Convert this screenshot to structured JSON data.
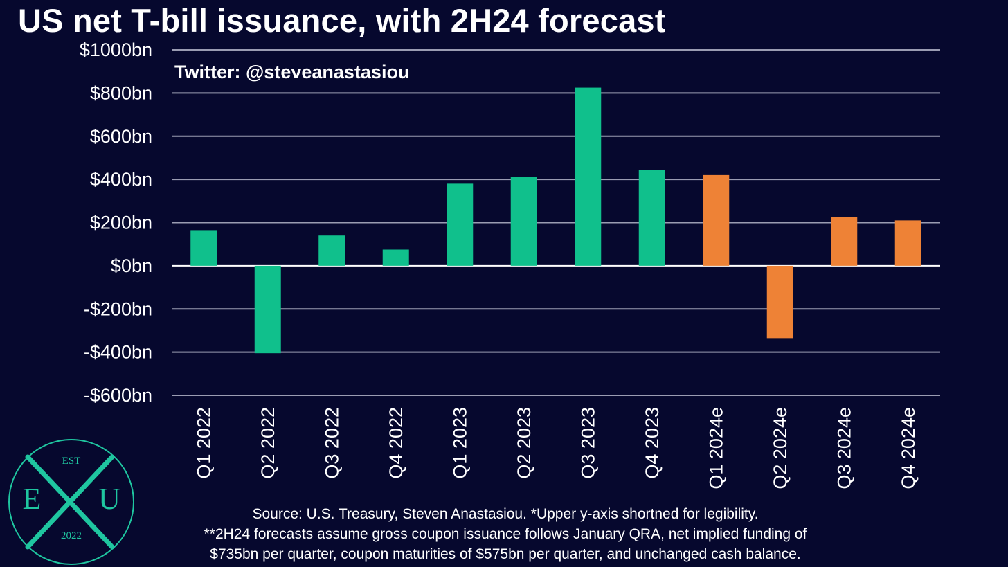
{
  "title": "US net T-bill issuance, with 2H24 forecast",
  "watermark": "Twitter: @steveanastasiou",
  "footnotes": [
    "Source: U.S. Treasury, Steven Anastasiou. *Upper y-axis shortned for legibility.",
    "**2H24 forecasts assume gross coupon issuance follows January QRA, net implied funding of",
    "$735bn per quarter, coupon maturities of $575bn per quarter, and unchanged cash balance."
  ],
  "logo": {
    "top": "EST",
    "left": "E",
    "right": "U",
    "bottom": "2022"
  },
  "colors": {
    "background": "#06082e",
    "actual": "#10c08c",
    "forecast": "#ee8236",
    "grid": "#9a9cb2",
    "zero": "#ffffff",
    "logo": "#1fc6a0"
  },
  "chart_data": {
    "type": "bar",
    "categories": [
      "Q1 2022",
      "Q2 2022",
      "Q3 2022",
      "Q4 2022",
      "Q1 2023",
      "Q2 2023",
      "Q3 2023",
      "Q4 2023",
      "Q1 2024e",
      "Q2 2024e",
      "Q3 2024e",
      "Q4 2024e"
    ],
    "values": [
      165,
      -405,
      140,
      75,
      380,
      410,
      825,
      445,
      420,
      -335,
      225,
      210
    ],
    "forecast": [
      false,
      false,
      false,
      false,
      false,
      false,
      false,
      false,
      true,
      true,
      true,
      true
    ],
    "ylim": [
      -600,
      1000
    ],
    "yticks": [
      1000,
      800,
      600,
      400,
      200,
      0,
      -200,
      -400,
      -600
    ],
    "ytick_labels": [
      "$1000bn",
      "$800bn",
      "$600bn",
      "$400bn",
      "$200bn",
      "$0bn",
      "-$200bn",
      "-$400bn",
      "-$600bn"
    ],
    "grid": true,
    "legend": "none"
  }
}
